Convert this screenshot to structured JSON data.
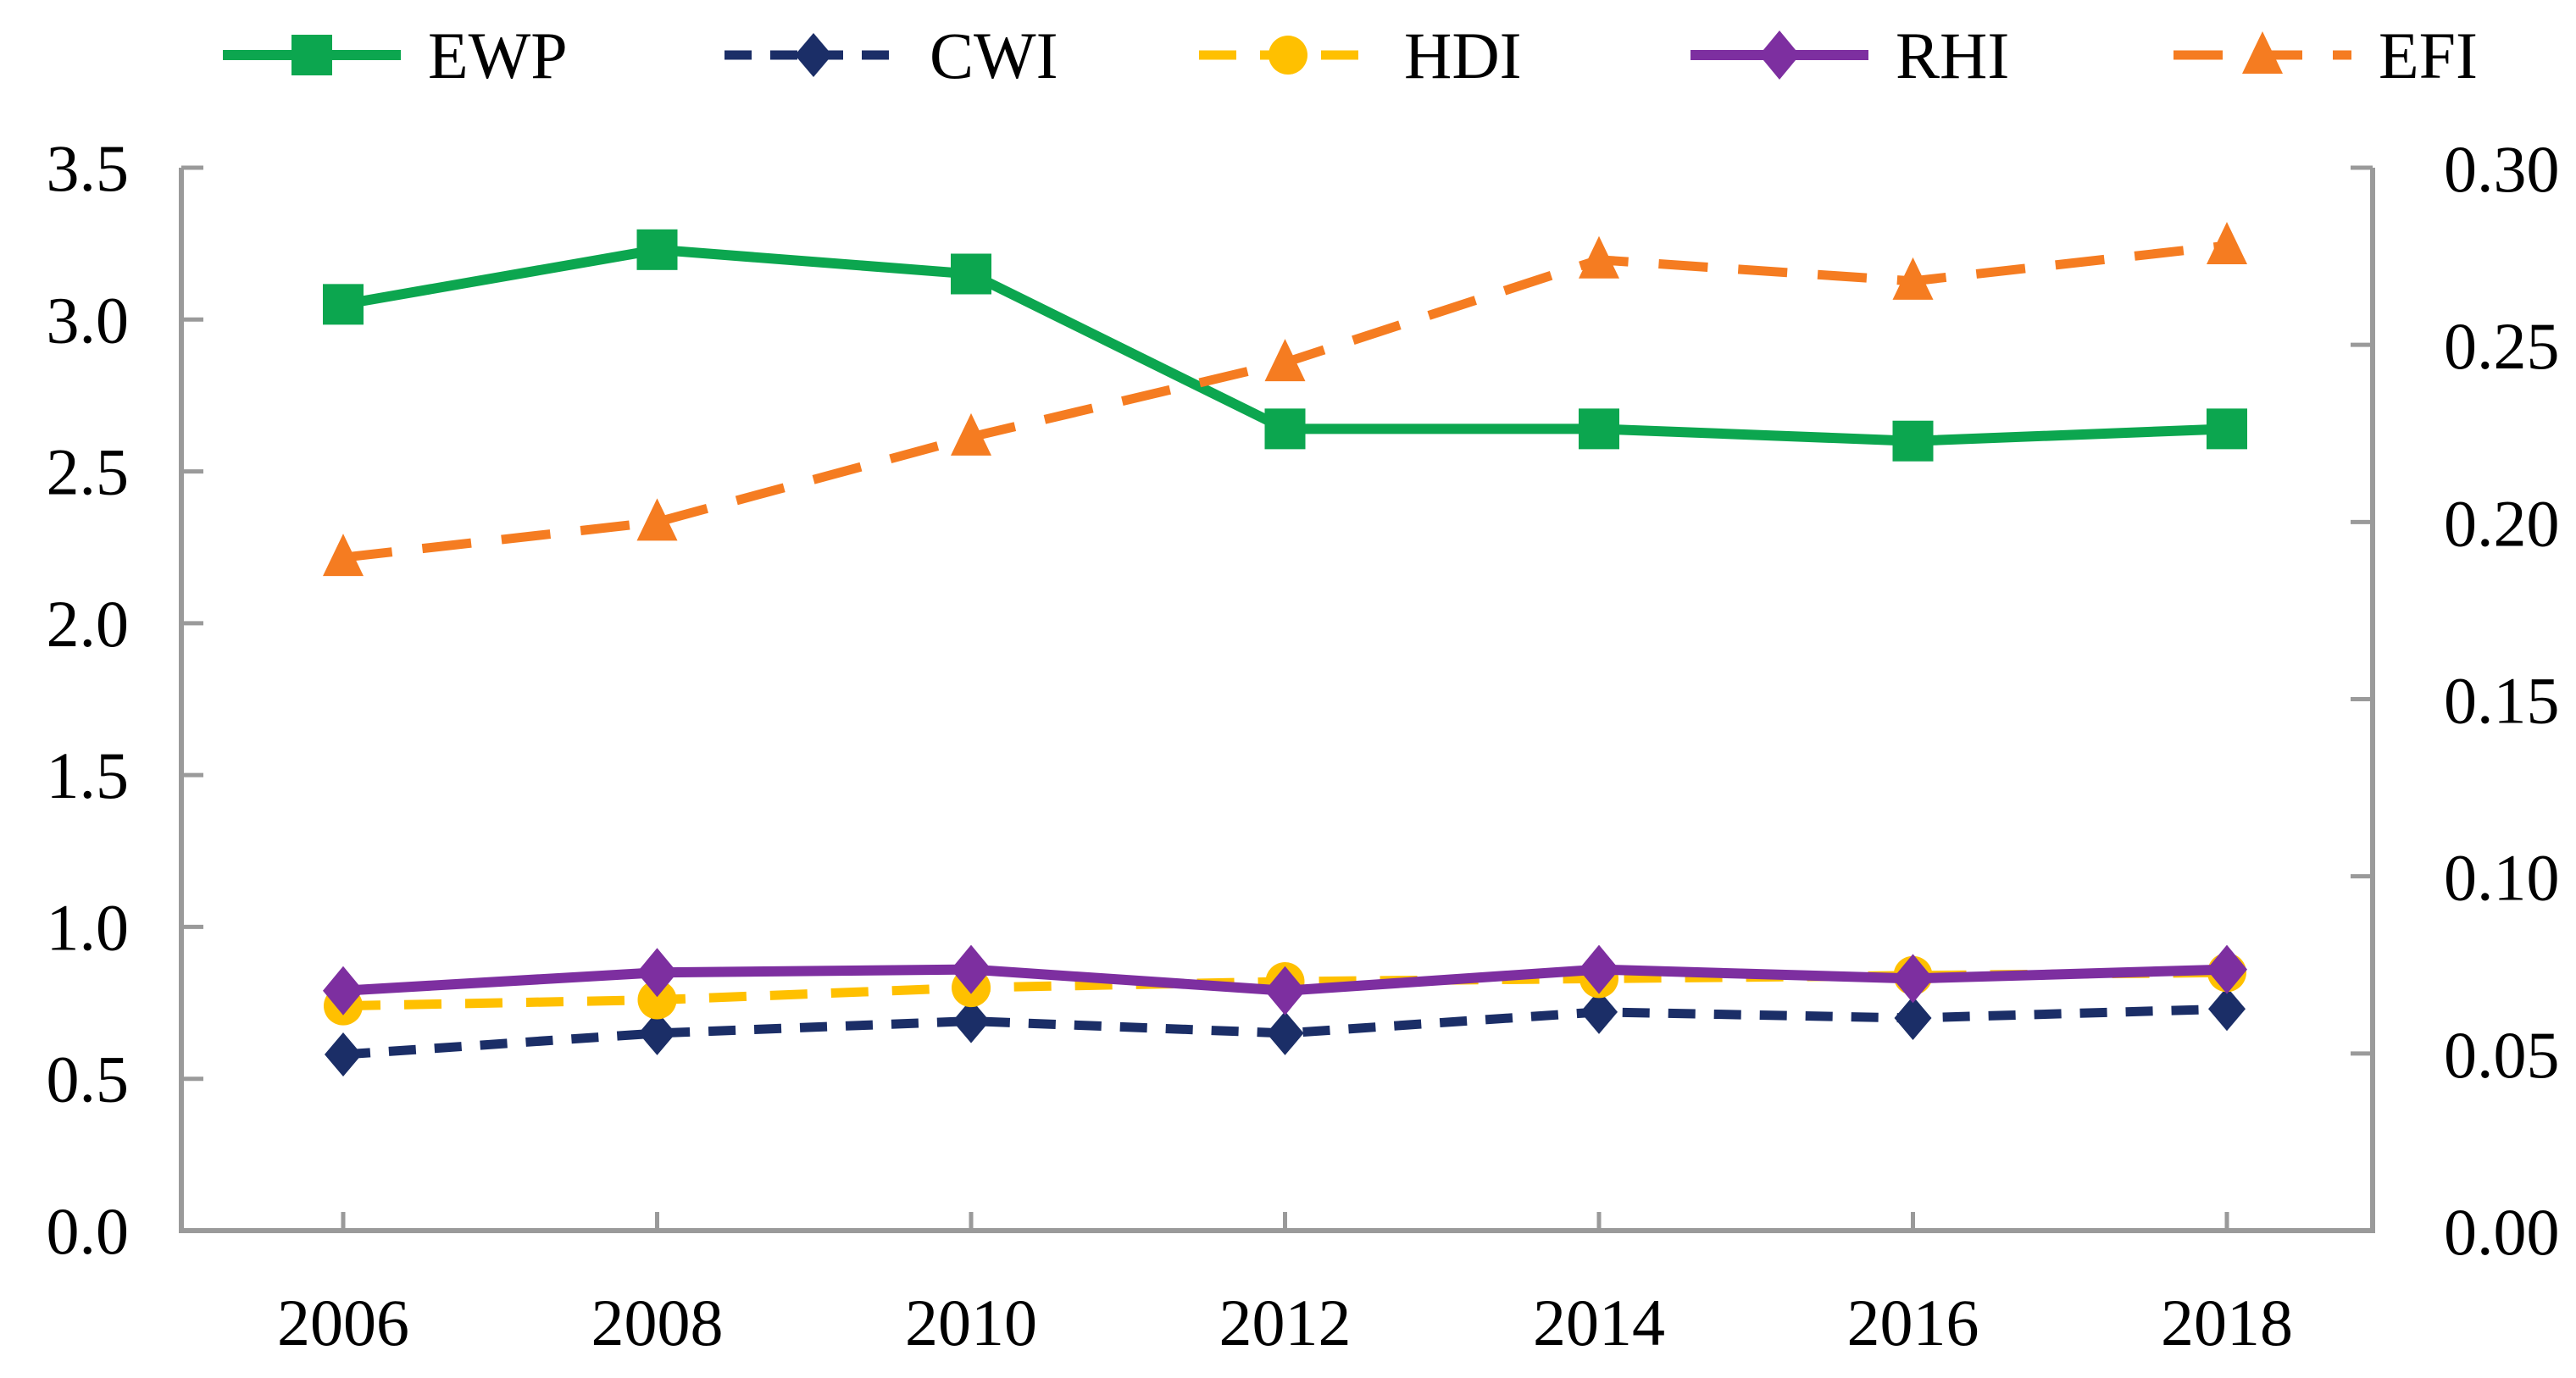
{
  "figure": {
    "background_color": "#FFFFFF",
    "axis_color": "#9A9A9A",
    "text_color": "#000000"
  },
  "chart_data": {
    "type": "line",
    "title": "",
    "xlabel": "",
    "ylabel": "",
    "grid": false,
    "legend_position": "top",
    "categories": [
      "2006",
      "2008",
      "2010",
      "2012",
      "2014",
      "2016",
      "2018"
    ],
    "series": [
      {
        "name": "EWP",
        "axis": "left",
        "values": [
          3.05,
          3.23,
          3.15,
          2.64,
          2.64,
          2.6,
          2.64
        ],
        "color": "#0CA64F",
        "line_style": "solid",
        "marker": "square"
      },
      {
        "name": "CWI",
        "axis": "left",
        "values": [
          0.58,
          0.65,
          0.69,
          0.65,
          0.72,
          0.7,
          0.73
        ],
        "color": "#1B2E67",
        "line_style": "dashed",
        "marker": "diamond"
      },
      {
        "name": "HDI",
        "axis": "left",
        "values": [
          0.74,
          0.76,
          0.8,
          0.82,
          0.83,
          0.84,
          0.85
        ],
        "color": "#FFC000",
        "line_style": "dashed",
        "marker": "circle"
      },
      {
        "name": "RHI",
        "axis": "left",
        "values": [
          0.79,
          0.85,
          0.86,
          0.79,
          0.86,
          0.83,
          0.86
        ],
        "color": "#7D2FA0",
        "line_style": "solid",
        "marker": "diamond"
      },
      {
        "name": "EFI",
        "axis": "right",
        "values": [
          0.19,
          0.2,
          0.224,
          0.245,
          0.274,
          0.268,
          0.278
        ],
        "color": "#F57C21",
        "line_style": "dashed",
        "marker": "triangle"
      }
    ],
    "left_axis": {
      "min": 0.0,
      "max": 3.5,
      "tick_labels": [
        "3.5",
        "3.0",
        "2.5",
        "2.0",
        "1.5",
        "1.0",
        "0.5",
        "0.0"
      ]
    },
    "right_axis": {
      "min": 0.0,
      "max": 0.3,
      "tick_labels": [
        "0.30",
        "0.25",
        "0.20",
        "0.15",
        "0.10",
        "0.05",
        "0.00"
      ]
    },
    "legend": [
      "EWP",
      "CWI",
      "HDI",
      "RHI",
      "EFI"
    ]
  }
}
